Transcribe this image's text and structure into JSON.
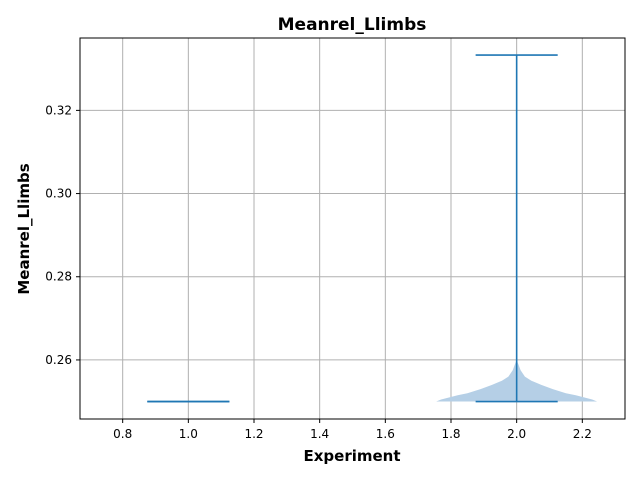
{
  "chart_data": {
    "type": "violin",
    "title": "Meanrel_Llimbs",
    "xlabel": "Experiment",
    "ylabel": "Meanrel_Llimbs",
    "xlim": [
      0.67,
      2.33
    ],
    "ylim": [
      0.2458,
      0.3374
    ],
    "xticks": [
      0.8,
      1.0,
      1.2,
      1.4,
      1.6,
      1.8,
      2.0,
      2.2
    ],
    "xtick_labels": [
      "0.8",
      "1.0",
      "1.2",
      "1.4",
      "1.6",
      "1.8",
      "2.0",
      "2.2"
    ],
    "yticks": [
      0.26,
      0.28,
      0.3,
      0.32
    ],
    "ytick_labels": [
      "0.26",
      "0.28",
      "0.30",
      "0.32"
    ],
    "grid": true,
    "violins": [
      {
        "position": 1.0,
        "min": 0.25,
        "max": 0.25,
        "cap_halfwidth": 0.125,
        "body": []
      },
      {
        "position": 2.0,
        "min": 0.25,
        "max": 0.3333,
        "cap_halfwidth": 0.125,
        "body": [
          {
            "y": 0.25,
            "hw": 0.245
          },
          {
            "y": 0.2505,
            "hw": 0.23
          },
          {
            "y": 0.251,
            "hw": 0.205
          },
          {
            "y": 0.2515,
            "hw": 0.18
          },
          {
            "y": 0.252,
            "hw": 0.15
          },
          {
            "y": 0.253,
            "hw": 0.11
          },
          {
            "y": 0.254,
            "hw": 0.075
          },
          {
            "y": 0.255,
            "hw": 0.045
          },
          {
            "y": 0.256,
            "hw": 0.025
          },
          {
            "y": 0.2575,
            "hw": 0.012
          },
          {
            "y": 0.259,
            "hw": 0.005
          },
          {
            "y": 0.26,
            "hw": 0.0
          }
        ]
      }
    ],
    "colors": {
      "line": "#1f77b4",
      "fill": "#b5cfe6",
      "grid": "#b0b0b0"
    }
  }
}
